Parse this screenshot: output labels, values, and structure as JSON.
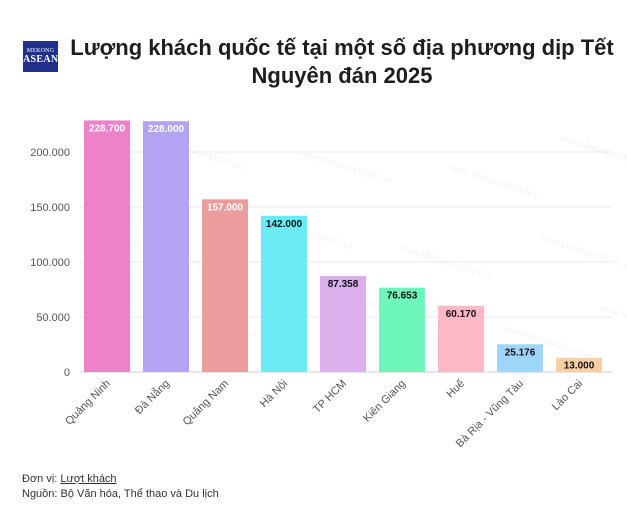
{
  "header": {
    "logo_line1": "MEKONG",
    "logo_line2": "ASEAN",
    "title_line1": "Lượng khách quốc tế tại một số địa phương dịp Tết",
    "title_line2": "Nguyên đán 2025"
  },
  "chart_data": {
    "type": "bar",
    "title": "Lượng khách quốc tế tại một số địa phương dịp Tết Nguyên đán 2025",
    "categories": [
      "Quảng Ninh",
      "Đà Nẵng",
      "Quảng Nam",
      "Hà Nội",
      "TP HCM",
      "Kiên Giang",
      "Huế",
      "Bà Rịa - Vũng Tàu",
      "Lào Cai"
    ],
    "values": [
      228700,
      228000,
      157000,
      142000,
      87358,
      76653,
      60170,
      25176,
      13000
    ],
    "value_labels": [
      "228.700",
      "228.000",
      "157.000",
      "142.000",
      "87.358",
      "76.653",
      "60.170",
      "25.176",
      "13.000"
    ],
    "colors": [
      "#ee82c8",
      "#b3a3f2",
      "#ec9c9c",
      "#6aeaf3",
      "#d9b0ec",
      "#6ef5ba",
      "#fdb8c6",
      "#9ed6f9",
      "#f9d0a6"
    ],
    "label_colors": [
      "#ffffff",
      "#ffffff",
      "#ffffff",
      "#111111",
      "#111111",
      "#111111",
      "#111111",
      "#111111",
      "#111111"
    ],
    "yticks": [
      0,
      50000,
      100000,
      150000,
      200000
    ],
    "ytick_labels": [
      "0",
      "50.000",
      "100.000",
      "150.000",
      "200.000"
    ],
    "ylim": [
      0,
      230000
    ],
    "xlabel": "",
    "ylabel": "",
    "grid": true,
    "legend": "none"
  },
  "watermark": "www.MekongASEAN.vn",
  "footer": {
    "unit_prefix": "Đơn vị: ",
    "unit_value": "Lượt khách",
    "source": "Nguồn: Bộ Văn hóa, Thể thao và Du lịch"
  }
}
